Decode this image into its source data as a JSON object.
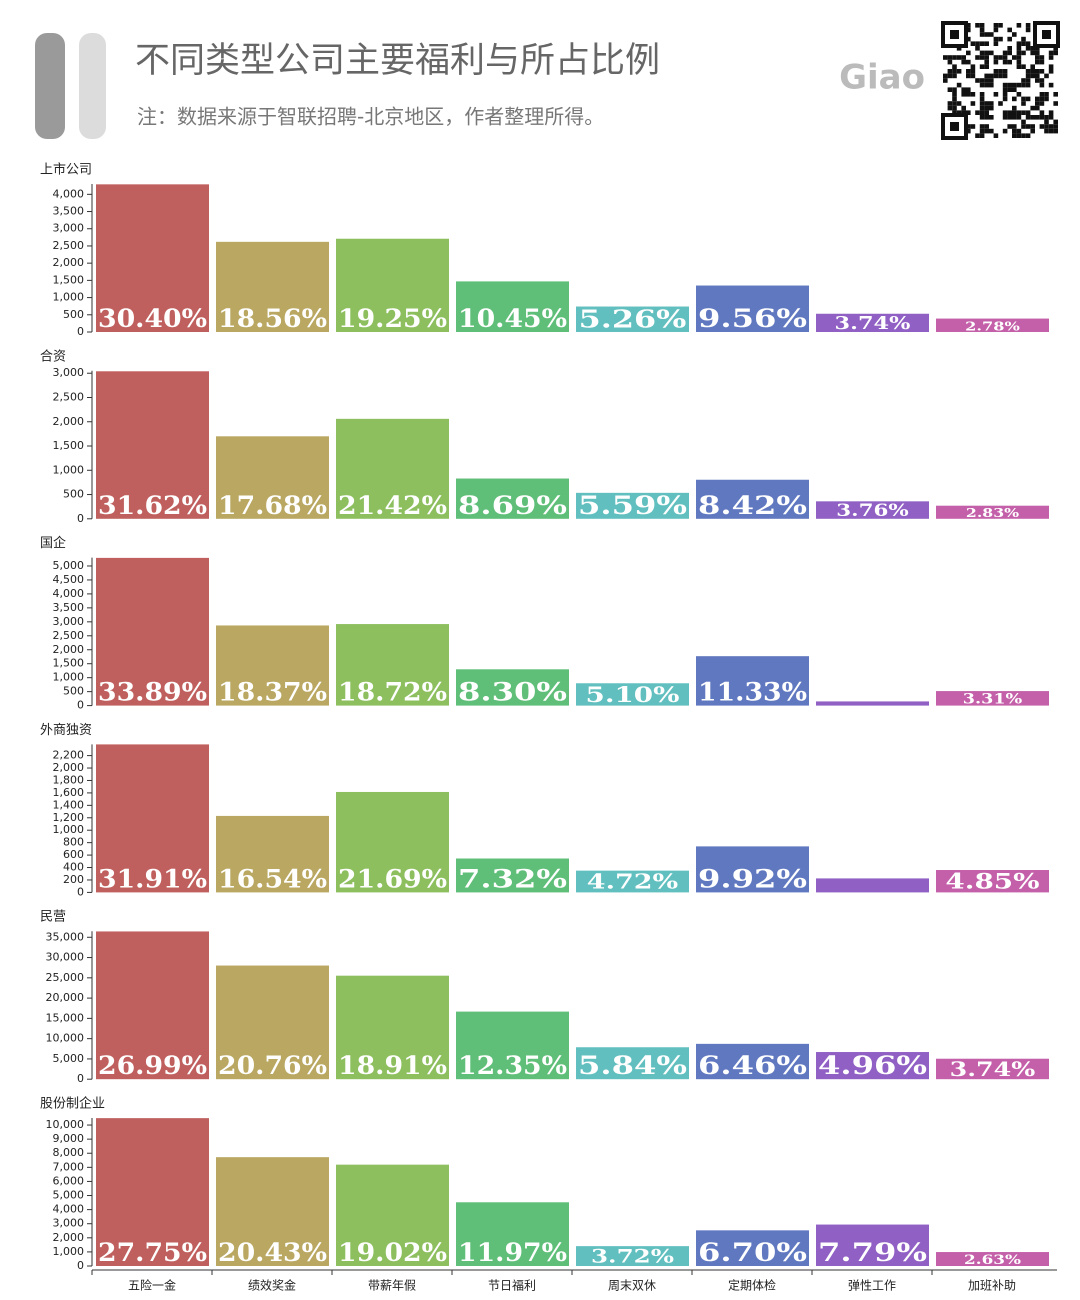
{
  "logo": "Giao",
  "title": "不同类型公司主要福利与所占比例",
  "subtitle": "注：数据来源于智联招聘-北京地区，作者整理所得。",
  "chart_data": [
    {
      "type": "bar",
      "title": "上市公司",
      "colors": [
        "#c0605e",
        "#b9a762",
        "#8dbf5f",
        "#5fbe78",
        "#62bfbf",
        "#6078c0",
        "#9060c4",
        "#c460a9"
      ],
      "values": [
        4290,
        2620,
        2710,
        1470,
        740,
        1350,
        530,
        390
      ],
      "bar_labels": [
        "30.40%",
        "18.56%",
        "19.25%",
        "10.45%",
        "5.26%",
        "9.56%",
        "3.74%",
        "2.78%"
      ],
      "ylim": [
        0,
        4300
      ],
      "yticks": [
        0,
        500,
        {
          "value": 1000,
          "label": "1,000"
        },
        {
          "value": 1500,
          "label": "1,500"
        },
        {
          "value": 2000,
          "label": "2,000"
        },
        {
          "value": 2500,
          "label": "2,500"
        },
        {
          "value": 3000,
          "label": "3,000"
        },
        {
          "value": 3500,
          "label": "3,500"
        },
        {
          "value": 4000,
          "label": "4,000"
        }
      ]
    },
    {
      "type": "bar",
      "title": "合资",
      "colors": [
        "#c0605e",
        "#b9a762",
        "#8dbf5f",
        "#5fbe78",
        "#62bfbf",
        "#6078c0",
        "#9060c4",
        "#c460a9"
      ],
      "values": [
        3040,
        1700,
        2060,
        830,
        535,
        805,
        360,
        270
      ],
      "bar_labels": [
        "31.62%",
        "17.68%",
        "21.42%",
        "8.69%",
        "5.59%",
        "8.42%",
        "3.76%",
        "2.83%"
      ],
      "ylim": [
        0,
        3050
      ],
      "yticks": [
        0,
        500,
        {
          "value": 1000,
          "label": "1,000"
        },
        {
          "value": 1500,
          "label": "1,500"
        },
        {
          "value": 2000,
          "label": "2,000"
        },
        {
          "value": 2500,
          "label": "2,500"
        },
        {
          "value": 3000,
          "label": "3,000"
        }
      ]
    },
    {
      "type": "bar",
      "title": "国企",
      "colors": [
        "#c0605e",
        "#b9a762",
        "#8dbf5f",
        "#5fbe78",
        "#62bfbf",
        "#6078c0",
        "#9060c4",
        "#c460a9"
      ],
      "values": [
        5290,
        2870,
        2920,
        1300,
        800,
        1770,
        150,
        520
      ],
      "bar_labels": [
        "33.89%",
        "18.37%",
        "18.72%",
        "8.30%",
        "5.10%",
        "11.33%",
        null,
        "3.31%"
      ],
      "ylim": [
        0,
        5300
      ],
      "yticks": [
        0,
        500,
        {
          "value": 1000,
          "label": "1,000"
        },
        {
          "value": 1500,
          "label": "1,500"
        },
        {
          "value": 2000,
          "label": "2,000"
        },
        {
          "value": 2500,
          "label": "2,500"
        },
        {
          "value": 3000,
          "label": "3,000"
        },
        {
          "value": 3500,
          "label": "3,500"
        },
        {
          "value": 4000,
          "label": "4,000"
        },
        {
          "value": 4500,
          "label": "4,500"
        },
        {
          "value": 5000,
          "label": "5,000"
        }
      ]
    },
    {
      "type": "bar",
      "title": "外商独资",
      "colors": [
        "#c0605e",
        "#b9a762",
        "#8dbf5f",
        "#5fbe78",
        "#62bfbf",
        "#6078c0",
        "#9060c4",
        "#c460a9"
      ],
      "values": [
        2380,
        1230,
        1615,
        545,
        350,
        740,
        225,
        360
      ],
      "bar_labels": [
        "31.91%",
        "16.54%",
        "21.69%",
        "7.32%",
        "4.72%",
        "9.92%",
        null,
        "4.85%"
      ],
      "ylim": [
        0,
        2380
      ],
      "yticks": [
        0,
        200,
        400,
        600,
        800,
        {
          "value": 1000,
          "label": "1,000"
        },
        {
          "value": 1200,
          "label": "1,200"
        },
        {
          "value": 1400,
          "label": "1,400"
        },
        {
          "value": 1600,
          "label": "1,600"
        },
        {
          "value": 1800,
          "label": "1,800"
        },
        {
          "value": 2000,
          "label": "2,000"
        },
        {
          "value": 2200,
          "label": "2,200"
        }
      ]
    },
    {
      "type": "bar",
      "title": "民营",
      "colors": [
        "#c0605e",
        "#b9a762",
        "#8dbf5f",
        "#5fbe78",
        "#62bfbf",
        "#6078c0",
        "#9060c4",
        "#c460a9"
      ],
      "values": [
        36440,
        28030,
        25530,
        16670,
        7880,
        8720,
        6700,
        5050
      ],
      "bar_labels": [
        "26.99%",
        "20.76%",
        "18.91%",
        "12.35%",
        "5.84%",
        "6.46%",
        "4.96%",
        "3.74%"
      ],
      "ylim": [
        0,
        36500
      ],
      "yticks": [
        0,
        {
          "value": 5000,
          "label": "5,000"
        },
        {
          "value": 10000,
          "label": "10,000"
        },
        {
          "value": 15000,
          "label": "15,000"
        },
        {
          "value": 20000,
          "label": "20,000"
        },
        {
          "value": 25000,
          "label": "25,000"
        },
        {
          "value": 30000,
          "label": "30,000"
        },
        {
          "value": 35000,
          "label": "35,000"
        }
      ]
    },
    {
      "type": "bar",
      "title": "股份制企业",
      "categories": [
        "五险一金",
        "绩效奖金",
        "带薪年假",
        "节日福利",
        "周末双休",
        "定期体检",
        "弹性工作",
        "加班补助"
      ],
      "colors": [
        "#c0605e",
        "#b9a762",
        "#8dbf5f",
        "#5fbe78",
        "#62bfbf",
        "#6078c0",
        "#9060c4",
        "#c460a9"
      ],
      "values": [
        10490,
        7720,
        7190,
        4520,
        1410,
        2530,
        2940,
        990
      ],
      "bar_labels": [
        "27.75%",
        "20.43%",
        "19.02%",
        "11.97%",
        "3.72%",
        "6.70%",
        "7.79%",
        "2.63%"
      ],
      "ylim": [
        0,
        10500
      ],
      "yticks": [
        0,
        {
          "value": 1000,
          "label": "1,000"
        },
        {
          "value": 2000,
          "label": "2,000"
        },
        {
          "value": 3000,
          "label": "3,000"
        },
        {
          "value": 4000,
          "label": "4,000"
        },
        {
          "value": 5000,
          "label": "5,000"
        },
        {
          "value": 6000,
          "label": "6,000"
        },
        {
          "value": 7000,
          "label": "7,000"
        },
        {
          "value": 8000,
          "label": "8,000"
        },
        {
          "value": 9000,
          "label": "9,000"
        },
        {
          "value": 10000,
          "label": "10,000"
        }
      ]
    }
  ]
}
